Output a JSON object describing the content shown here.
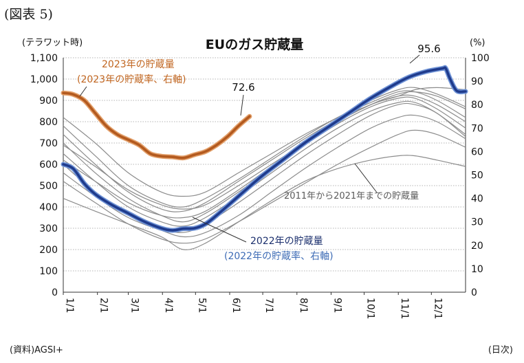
{
  "figure_label": "(図表 5)",
  "source_note": "(資料)AGSI+",
  "x_unit_note": "(日次)",
  "chart_data": {
    "type": "line",
    "title": "EUのガス貯蔵量",
    "ylabel_left": "(テラワット時)",
    "ylabel_right": "(%)",
    "ylim_left": [
      0,
      1100
    ],
    "ylim_right": [
      0,
      100
    ],
    "yticks_left": [
      "0",
      "100",
      "200",
      "300",
      "400",
      "500",
      "600",
      "700",
      "800",
      "900",
      "1,000",
      "1,100"
    ],
    "yticks_right": [
      "0",
      "10",
      "20",
      "30",
      "40",
      "50",
      "60",
      "70",
      "80",
      "90",
      "100"
    ],
    "xticks": [
      "1/1",
      "2/1",
      "3/1",
      "4/1",
      "5/1",
      "6/1",
      "7/1",
      "8/1",
      "9/1",
      "10/1",
      "11/1",
      "12/1"
    ],
    "x_day_of_year_domain": [
      1,
      366
    ],
    "grid": true,
    "series": [
      {
        "name": "2011年から2021年までの貯蔵量",
        "color": "#8c8c8c",
        "group": "history",
        "points": [
          [
            1,
            820
          ],
          [
            30,
            700
          ],
          [
            60,
            560
          ],
          [
            90,
            470
          ],
          [
            110,
            450
          ],
          [
            130,
            470
          ],
          [
            160,
            560
          ],
          [
            190,
            650
          ],
          [
            220,
            740
          ],
          [
            250,
            820
          ],
          [
            280,
            900
          ],
          [
            305,
            950
          ],
          [
            320,
            960
          ],
          [
            340,
            930
          ],
          [
            366,
            870
          ]
        ]
      },
      {
        "name": "",
        "color": "#8c8c8c",
        "group": "history",
        "points": [
          [
            1,
            780
          ],
          [
            30,
            640
          ],
          [
            60,
            500
          ],
          [
            90,
            420
          ],
          [
            110,
            400
          ],
          [
            130,
            440
          ],
          [
            160,
            530
          ],
          [
            190,
            630
          ],
          [
            220,
            730
          ],
          [
            250,
            820
          ],
          [
            280,
            890
          ],
          [
            305,
            940
          ],
          [
            320,
            940
          ],
          [
            340,
            900
          ],
          [
            366,
            820
          ]
        ]
      },
      {
        "name": "",
        "color": "#8c8c8c",
        "group": "history",
        "points": [
          [
            1,
            740
          ],
          [
            30,
            600
          ],
          [
            60,
            470
          ],
          [
            90,
            390
          ],
          [
            110,
            380
          ],
          [
            130,
            420
          ],
          [
            160,
            520
          ],
          [
            190,
            620
          ],
          [
            220,
            720
          ],
          [
            250,
            810
          ],
          [
            280,
            880
          ],
          [
            305,
            920
          ],
          [
            320,
            920
          ],
          [
            340,
            880
          ],
          [
            366,
            800
          ]
        ]
      },
      {
        "name": "",
        "color": "#8c8c8c",
        "group": "history",
        "points": [
          [
            1,
            700
          ],
          [
            30,
            560
          ],
          [
            60,
            440
          ],
          [
            90,
            360
          ],
          [
            110,
            330
          ],
          [
            130,
            370
          ],
          [
            160,
            470
          ],
          [
            190,
            580
          ],
          [
            220,
            690
          ],
          [
            250,
            790
          ],
          [
            280,
            870
          ],
          [
            305,
            910
          ],
          [
            320,
            910
          ],
          [
            340,
            860
          ],
          [
            366,
            770
          ]
        ]
      },
      {
        "name": "",
        "color": "#8c8c8c",
        "group": "history",
        "points": [
          [
            1,
            650
          ],
          [
            30,
            520
          ],
          [
            60,
            400
          ],
          [
            90,
            330
          ],
          [
            110,
            310
          ],
          [
            130,
            350
          ],
          [
            160,
            450
          ],
          [
            190,
            560
          ],
          [
            220,
            670
          ],
          [
            250,
            770
          ],
          [
            280,
            850
          ],
          [
            305,
            890
          ],
          [
            320,
            890
          ],
          [
            340,
            840
          ],
          [
            366,
            740
          ]
        ]
      },
      {
        "name": "",
        "color": "#8c8c8c",
        "group": "history",
        "points": [
          [
            1,
            600
          ],
          [
            30,
            470
          ],
          [
            60,
            370
          ],
          [
            90,
            300
          ],
          [
            110,
            280
          ],
          [
            130,
            320
          ],
          [
            160,
            420
          ],
          [
            190,
            530
          ],
          [
            220,
            640
          ],
          [
            250,
            740
          ],
          [
            280,
            830
          ],
          [
            305,
            880
          ],
          [
            320,
            880
          ],
          [
            340,
            840
          ],
          [
            366,
            730
          ]
        ]
      },
      {
        "name": "",
        "color": "#8c8c8c",
        "group": "history",
        "points": [
          [
            1,
            560
          ],
          [
            30,
            450
          ],
          [
            60,
            350
          ],
          [
            90,
            290
          ],
          [
            110,
            260
          ],
          [
            130,
            280
          ],
          [
            160,
            360
          ],
          [
            190,
            470
          ],
          [
            220,
            580
          ],
          [
            250,
            680
          ],
          [
            280,
            770
          ],
          [
            305,
            820
          ],
          [
            320,
            830
          ],
          [
            340,
            800
          ],
          [
            366,
            720
          ]
        ]
      },
      {
        "name": "",
        "color": "#8c8c8c",
        "group": "history",
        "points": [
          [
            1,
            520
          ],
          [
            30,
            420
          ],
          [
            60,
            320
          ],
          [
            90,
            250
          ],
          [
            110,
            230
          ],
          [
            130,
            250
          ],
          [
            160,
            330
          ],
          [
            190,
            420
          ],
          [
            220,
            510
          ],
          [
            250,
            600
          ],
          [
            280,
            680
          ],
          [
            305,
            740
          ],
          [
            320,
            760
          ],
          [
            340,
            740
          ],
          [
            366,
            680
          ]
        ]
      },
      {
        "name": "",
        "color": "#8c8c8c",
        "group": "history",
        "points": [
          [
            1,
            440
          ],
          [
            30,
            380
          ],
          [
            60,
            320
          ],
          [
            90,
            260
          ],
          [
            110,
            200
          ],
          [
            130,
            230
          ],
          [
            160,
            330
          ],
          [
            190,
            430
          ],
          [
            220,
            520
          ],
          [
            250,
            580
          ],
          [
            280,
            620
          ],
          [
            305,
            640
          ],
          [
            320,
            640
          ],
          [
            340,
            620
          ],
          [
            366,
            590
          ]
        ]
      },
      {
        "name": "",
        "color": "#8c8c8c",
        "group": "history",
        "points": [
          [
            1,
            620
          ],
          [
            30,
            520
          ],
          [
            60,
            420
          ],
          [
            90,
            360
          ],
          [
            110,
            350
          ],
          [
            130,
            380
          ],
          [
            160,
            480
          ],
          [
            190,
            590
          ],
          [
            220,
            700
          ],
          [
            250,
            800
          ],
          [
            280,
            880
          ],
          [
            305,
            930
          ],
          [
            320,
            940
          ],
          [
            340,
            920
          ],
          [
            366,
            860
          ]
        ]
      },
      {
        "name": "",
        "color": "#8c8c8c",
        "group": "history",
        "points": [
          [
            1,
            690
          ],
          [
            30,
            590
          ],
          [
            60,
            480
          ],
          [
            90,
            410
          ],
          [
            110,
            390
          ],
          [
            130,
            410
          ],
          [
            160,
            500
          ],
          [
            190,
            600
          ],
          [
            220,
            700
          ],
          [
            250,
            800
          ],
          [
            280,
            880
          ],
          [
            305,
            920
          ],
          [
            320,
            950
          ],
          [
            340,
            960
          ],
          [
            366,
            950
          ]
        ]
      },
      {
        "name": "2022年の貯蔵量",
        "color": "#1f3b8c",
        "group": "y2022",
        "points": [
          [
            1,
            600
          ],
          [
            10,
            580
          ],
          [
            20,
            510
          ],
          [
            30,
            460
          ],
          [
            45,
            410
          ],
          [
            60,
            370
          ],
          [
            75,
            330
          ],
          [
            90,
            300
          ],
          [
            100,
            290
          ],
          [
            110,
            298
          ],
          [
            120,
            300
          ],
          [
            130,
            320
          ],
          [
            140,
            360
          ],
          [
            160,
            450
          ],
          [
            180,
            540
          ],
          [
            200,
            620
          ],
          [
            220,
            700
          ],
          [
            240,
            770
          ],
          [
            260,
            840
          ],
          [
            280,
            910
          ],
          [
            300,
            970
          ],
          [
            315,
            1010
          ],
          [
            330,
            1035
          ],
          [
            345,
            1050
          ],
          [
            348,
            1050
          ],
          [
            352,
            1000
          ],
          [
            358,
            945
          ],
          [
            366,
            942
          ]
        ]
      },
      {
        "name": "2023年の貯蔵量",
        "color": "#b35a1f",
        "group": "y2023",
        "points": [
          [
            1,
            935
          ],
          [
            10,
            928
          ],
          [
            20,
            900
          ],
          [
            30,
            840
          ],
          [
            40,
            780
          ],
          [
            50,
            740
          ],
          [
            60,
            715
          ],
          [
            70,
            690
          ],
          [
            80,
            650
          ],
          [
            90,
            638
          ],
          [
            100,
            635
          ],
          [
            110,
            630
          ],
          [
            120,
            645
          ],
          [
            130,
            660
          ],
          [
            140,
            690
          ],
          [
            150,
            730
          ],
          [
            160,
            780
          ],
          [
            170,
            825
          ]
        ]
      }
    ],
    "annotations": [
      {
        "text": "72.6",
        "color": "#1a1a1a"
      },
      {
        "text": "95.6",
        "color": "#1a1a1a"
      },
      {
        "text": "2023年の貯蔵量",
        "color": "#c0641e"
      },
      {
        "text": "(2023年の貯蔵率、右軸)",
        "color": "#c0641e"
      },
      {
        "text": "2022年の貯蔵量",
        "color": "#1a2e6c"
      },
      {
        "text": "(2022年の貯蔵率、右軸)",
        "color": "#3d6bb5"
      },
      {
        "text": "2011年から2021年までの貯蔵量",
        "color": "#5a5a5a"
      }
    ]
  }
}
